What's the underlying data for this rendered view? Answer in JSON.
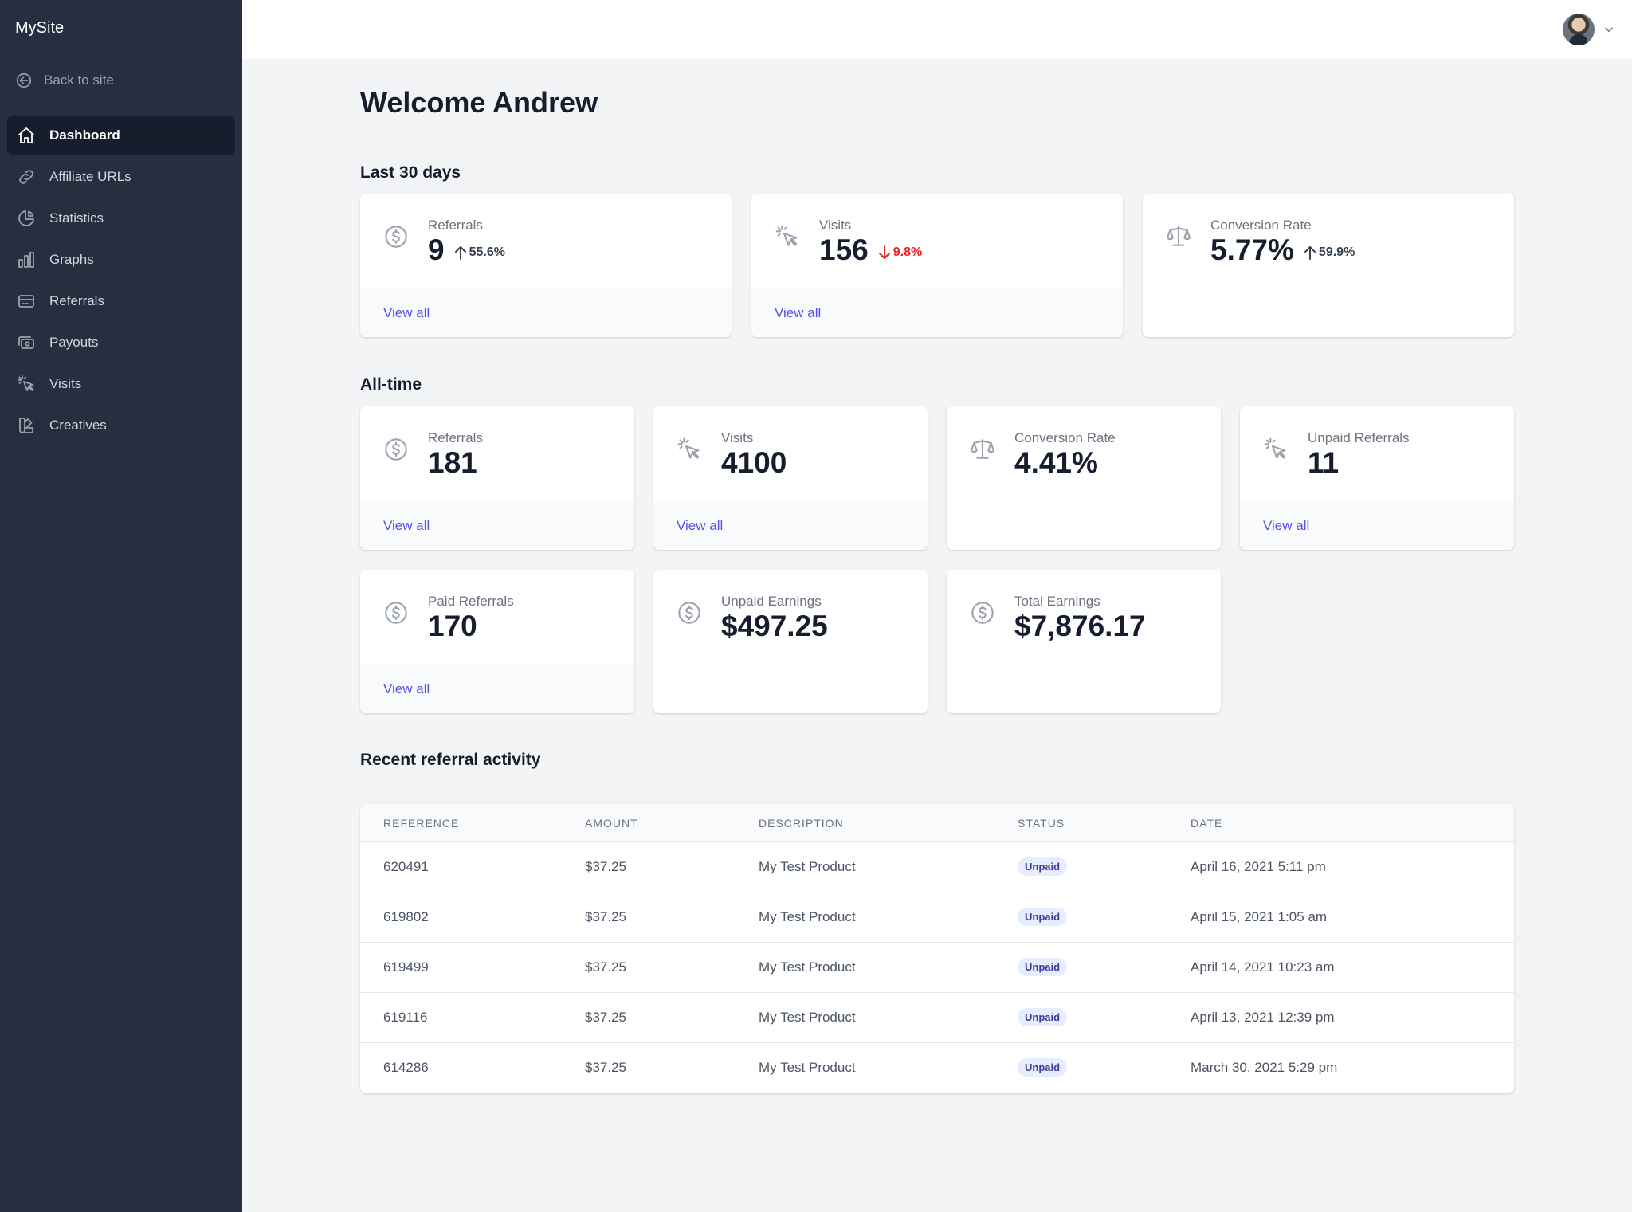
{
  "sidebar": {
    "brand": "MySite",
    "back_label": "Back to site",
    "items": [
      {
        "label": "Dashboard",
        "icon": "home-icon",
        "active": true
      },
      {
        "label": "Affiliate URLs",
        "icon": "link-icon"
      },
      {
        "label": "Statistics",
        "icon": "pie-chart-icon"
      },
      {
        "label": "Graphs",
        "icon": "bar-chart-icon"
      },
      {
        "label": "Referrals",
        "icon": "credit-card-icon"
      },
      {
        "label": "Payouts",
        "icon": "cash-icon"
      },
      {
        "label": "Visits",
        "icon": "cursor-click-icon"
      },
      {
        "label": "Creatives",
        "icon": "color-swatch-icon"
      }
    ]
  },
  "header": {
    "avatar": "user-avatar"
  },
  "main": {
    "title": "Welcome Andrew",
    "last30": {
      "heading": "Last 30 days",
      "cards": [
        {
          "label": "Referrals",
          "value": "9",
          "change": "55.6%",
          "trend": "up",
          "link": "View all",
          "icon": "currency-dollar-icon"
        },
        {
          "label": "Visits",
          "value": "156",
          "change": "9.8%",
          "trend": "down",
          "link": "View all",
          "icon": "cursor-click-icon"
        },
        {
          "label": "Conversion Rate",
          "value": "5.77%",
          "change": "59.9%",
          "trend": "up",
          "icon": "scale-icon"
        }
      ]
    },
    "alltime": {
      "heading": "All-time",
      "cards": [
        {
          "label": "Referrals",
          "value": "181",
          "link": "View all",
          "icon": "currency-dollar-icon"
        },
        {
          "label": "Visits",
          "value": "4100",
          "link": "View all",
          "icon": "cursor-click-icon"
        },
        {
          "label": "Conversion Rate",
          "value": "4.41%",
          "icon": "scale-icon"
        },
        {
          "label": "Unpaid Referrals",
          "value": "11",
          "link": "View all",
          "icon": "cursor-click-icon"
        },
        {
          "label": "Paid Referrals",
          "value": "170",
          "link": "View all",
          "icon": "currency-dollar-icon"
        },
        {
          "label": "Unpaid Earnings",
          "value": "$497.25",
          "icon": "currency-dollar-icon"
        },
        {
          "label": "Total Earnings",
          "value": "$7,876.17",
          "icon": "currency-dollar-icon"
        }
      ]
    },
    "recent": {
      "heading": "Recent referral activity",
      "columns": [
        "REFERENCE",
        "AMOUNT",
        "DESCRIPTION",
        "STATUS",
        "DATE"
      ],
      "rows": [
        {
          "reference": "620491",
          "amount": "$37.25",
          "description": "My Test Product",
          "status": "Unpaid",
          "date": "April 16, 2021 5:11 pm"
        },
        {
          "reference": "619802",
          "amount": "$37.25",
          "description": "My Test Product",
          "status": "Unpaid",
          "date": "April 15, 2021 1:05 am"
        },
        {
          "reference": "619499",
          "amount": "$37.25",
          "description": "My Test Product",
          "status": "Unpaid",
          "date": "April 14, 2021 10:23 am"
        },
        {
          "reference": "619116",
          "amount": "$37.25",
          "description": "My Test Product",
          "status": "Unpaid",
          "date": "April 13, 2021 12:39 pm"
        },
        {
          "reference": "614286",
          "amount": "$37.25",
          "description": "My Test Product",
          "status": "Unpaid",
          "date": "March 30, 2021 5:29 pm"
        }
      ]
    }
  },
  "colors": {
    "sidebar": "#252f3f",
    "active_nav": "#161e2e",
    "link": "#5850ec",
    "down": "#e02424",
    "badge_bg": "#e5edff",
    "badge_text": "#42389d"
  }
}
